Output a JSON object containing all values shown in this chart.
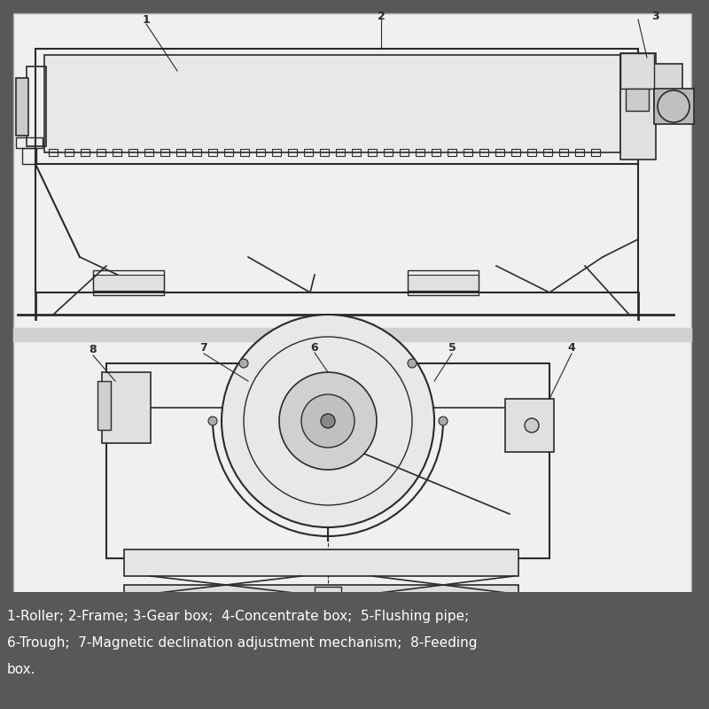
{
  "bg_color": "#585858",
  "panel_color": "#ffffff",
  "line_color": "#2a2a2a",
  "label_color": "#ffffff",
  "caption_text_line1": "1-Roller; 2-Frame; 3-Gear box;  4-Concentrate box;  5-Flushing pipe;",
  "caption_text_line2": "6-Trough;  7-Magnetic declination adjustment mechanism;  8-Feeding",
  "caption_text_line3": "box.",
  "caption_fontsize": 11,
  "labels_top": [
    "1",
    "2",
    "3"
  ],
  "labels_bottom": [
    "8",
    "7",
    "6",
    "5",
    "4"
  ],
  "figure_width": 8.0,
  "figure_height": 8.0
}
